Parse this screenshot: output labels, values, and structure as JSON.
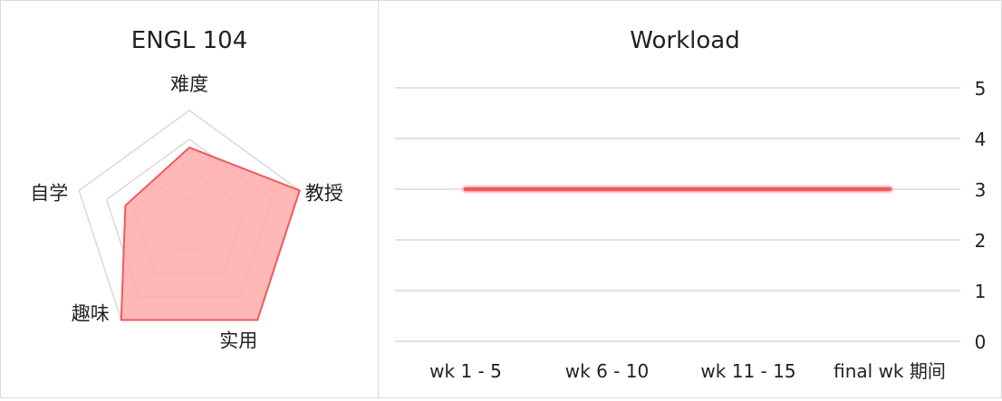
{
  "colors": {
    "accent": "#f05a5a",
    "fill": "#ffaaaa",
    "grid": "#d9d9d9"
  },
  "radar_chart": {
    "title": "ENGL 104",
    "axes": [
      "难度",
      "教授",
      "实用",
      "趣味",
      "自学"
    ],
    "max": 5,
    "rings": 4
  },
  "line_chart": {
    "title": "Workload"
  },
  "chart_data": [
    {
      "type": "radar",
      "title": "ENGL 104",
      "categories": [
        "难度",
        "教授",
        "实用",
        "趣味",
        "自学"
      ],
      "values": [
        3.4,
        5,
        5,
        5,
        2.9
      ],
      "range": [
        0,
        5
      ]
    },
    {
      "type": "line",
      "title": "Workload",
      "categories": [
        "wk 1 - 5",
        "wk 6 - 10",
        "wk 11 - 15",
        "final wk 期间"
      ],
      "values": [
        3,
        3,
        3,
        3
      ],
      "ylim": [
        0,
        5
      ],
      "yticks": [
        0,
        1,
        2,
        3,
        4,
        5
      ],
      "y_axis_side": "right",
      "grid": true
    }
  ]
}
